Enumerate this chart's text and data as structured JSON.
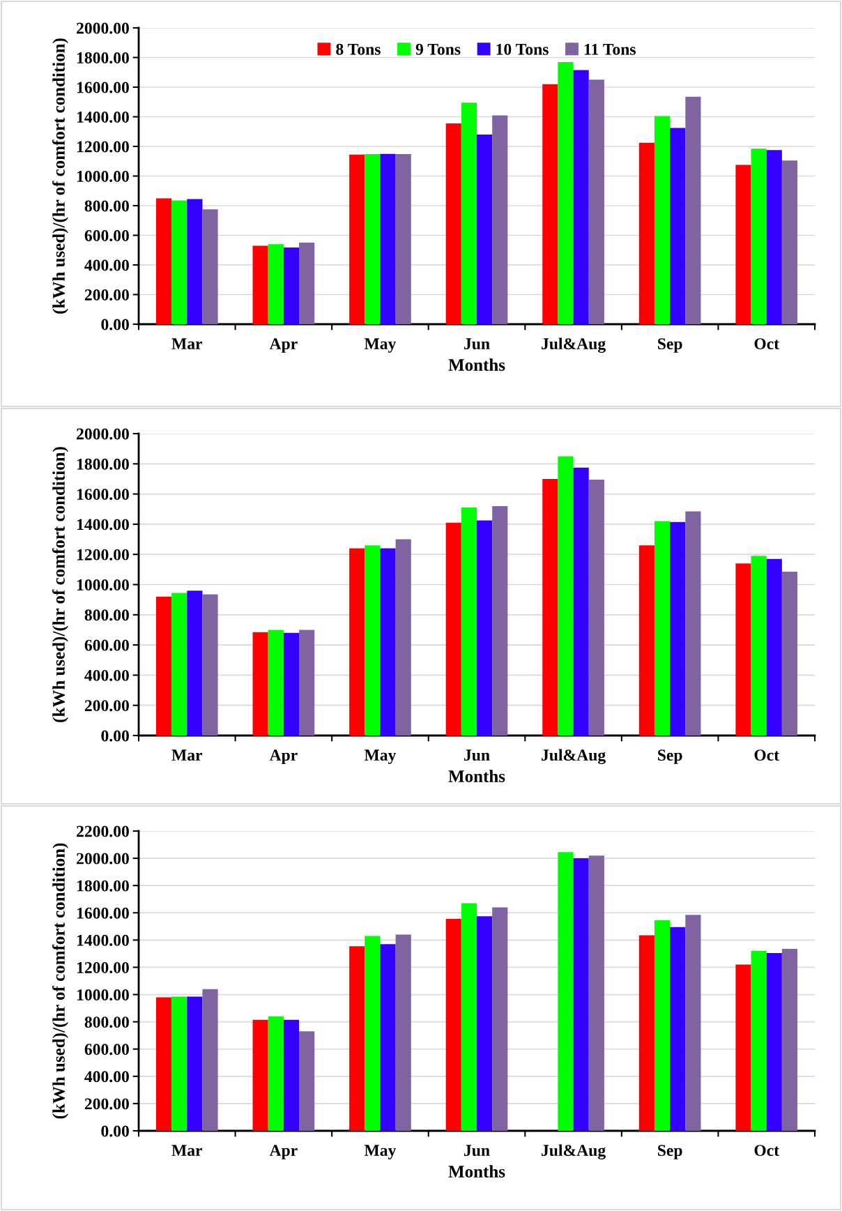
{
  "chart_data": [
    {
      "type": "bar",
      "xlabel": "Months",
      "ylabel": "(kWh used)/(hr of comfort condition)",
      "categories": [
        "Mar",
        "Apr",
        "May",
        "Jun",
        "Jul&Aug",
        "Sep",
        "Oct"
      ],
      "ylim": [
        0,
        2000
      ],
      "yticks": [
        {
          "value": 0,
          "label": "0.00"
        },
        {
          "value": 200,
          "label": "200.00"
        },
        {
          "value": 400,
          "label": "400.00"
        },
        {
          "value": 600,
          "label": "600.00"
        },
        {
          "value": 800,
          "label": "800.00"
        },
        {
          "value": 1000,
          "label": "1000.00"
        },
        {
          "value": 1200,
          "label": "1200.00"
        },
        {
          "value": 1400,
          "label": "1400.00"
        },
        {
          "value": 1600,
          "label": "1600.00"
        },
        {
          "value": 1800,
          "label": "1800.00"
        },
        {
          "value": 2000,
          "label": "2000.00"
        }
      ],
      "grid": "y",
      "legend": "top",
      "series": [
        {
          "name": "8 Tons",
          "color": "#ff0000",
          "values": [
            850,
            530,
            1145,
            1355,
            1620,
            1225,
            1075
          ]
        },
        {
          "name": "9 Tons",
          "color": "#00ff00",
          "values": [
            835,
            540,
            1148,
            1495,
            1770,
            1405,
            1185
          ]
        },
        {
          "name": "10 Tons",
          "color": "#3300ff",
          "values": [
            845,
            518,
            1150,
            1280,
            1715,
            1325,
            1175
          ]
        },
        {
          "name": "11 Tons",
          "color": "#8064a2",
          "values": [
            775,
            550,
            1148,
            1410,
            1650,
            1535,
            1105
          ]
        }
      ]
    },
    {
      "type": "bar",
      "xlabel": "Months",
      "ylabel": "(kWh used)/(hr of comfort condition)",
      "categories": [
        "Mar",
        "Apr",
        "May",
        "Jun",
        "Jul&Aug",
        "Sep",
        "Oct"
      ],
      "ylim": [
        0,
        2000
      ],
      "yticks": [
        {
          "value": 0,
          "label": "0.00"
        },
        {
          "value": 200,
          "label": "200.00"
        },
        {
          "value": 400,
          "label": "400.00"
        },
        {
          "value": 600,
          "label": "600.00"
        },
        {
          "value": 800,
          "label": "800.00"
        },
        {
          "value": 1000,
          "label": "1000.00"
        },
        {
          "value": 1200,
          "label": "1200.00"
        },
        {
          "value": 1400,
          "label": "1400.00"
        },
        {
          "value": 1600,
          "label": "1600.00"
        },
        {
          "value": 1800,
          "label": "1800.00"
        },
        {
          "value": 2000,
          "label": "2000.00"
        }
      ],
      "grid": "y",
      "series": [
        {
          "color": "#ff0000",
          "values": [
            920,
            685,
            1240,
            1410,
            1700,
            1260,
            1140
          ]
        },
        {
          "color": "#00ff00",
          "values": [
            945,
            700,
            1260,
            1510,
            1850,
            1420,
            1190
          ]
        },
        {
          "color": "#3300ff",
          "values": [
            960,
            680,
            1240,
            1425,
            1775,
            1415,
            1170
          ]
        },
        {
          "color": "#8064a2",
          "values": [
            935,
            700,
            1300,
            1520,
            1695,
            1485,
            1085
          ]
        }
      ]
    },
    {
      "type": "bar",
      "xlabel": "Months",
      "ylabel": "(kWh used)/(hr of comfort condition)",
      "categories": [
        "Mar",
        "Apr",
        "May",
        "Jun",
        "Jul&Aug",
        "Sep",
        "Oct"
      ],
      "ylim": [
        0,
        2200
      ],
      "yticks": [
        {
          "value": 0,
          "label": "0.00"
        },
        {
          "value": 200,
          "label": "200.00"
        },
        {
          "value": 400,
          "label": "400.00"
        },
        {
          "value": 600,
          "label": "600.00"
        },
        {
          "value": 800,
          "label": "800.00"
        },
        {
          "value": 1000,
          "label": "1000.00"
        },
        {
          "value": 1200,
          "label": "1200.00"
        },
        {
          "value": 1400,
          "label": "1400.00"
        },
        {
          "value": 1600,
          "label": "1600.00"
        },
        {
          "value": 1800,
          "label": "1800.00"
        },
        {
          "value": 2000,
          "label": "2000.00"
        },
        {
          "value": 2200,
          "label": "2200.00"
        }
      ],
      "grid": "y",
      "series": [
        {
          "color": "#ff0000",
          "values": [
            980,
            815,
            1355,
            1555,
            null,
            1435,
            1220
          ]
        },
        {
          "color": "#00ff00",
          "values": [
            985,
            840,
            1430,
            1670,
            2045,
            1545,
            1320
          ]
        },
        {
          "color": "#3300ff",
          "values": [
            985,
            815,
            1370,
            1575,
            2000,
            1495,
            1305
          ]
        },
        {
          "color": "#8064a2",
          "values": [
            1040,
            730,
            1440,
            1640,
            2020,
            1585,
            1335
          ]
        }
      ]
    }
  ]
}
